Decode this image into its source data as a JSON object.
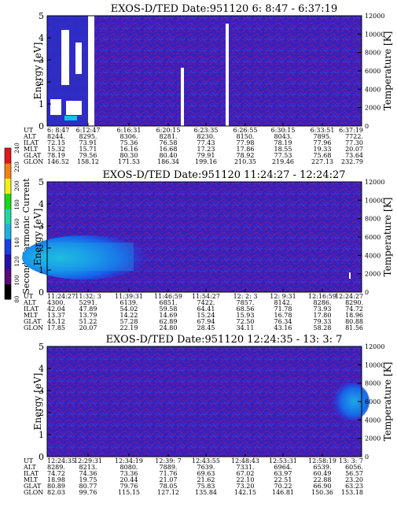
{
  "colorbar": {
    "label": "Second Harmonic Current",
    "ticks": [
      "80",
      "100",
      "120",
      "140",
      "160",
      "180",
      "200",
      "220",
      "240"
    ],
    "colors": [
      "#000000",
      "#5a0a78",
      "#2a10a8",
      "#1840e8",
      "#20b0e0",
      "#20d8a0",
      "#18d818",
      "#f0f018",
      "#f08018",
      "#e01818"
    ]
  },
  "row_labels": [
    "UT",
    "ALT",
    "ILAT",
    "MLT",
    "GLAT",
    "GLON"
  ],
  "panels": [
    {
      "title": "EXOS-D/TED   Date:951120   6: 8:47 - 6:37:19",
      "ylabel": "Energy [eV]",
      "y2label": "Temperature [K]",
      "yticks": [
        "0",
        "1",
        "2",
        "3",
        "4",
        "5"
      ],
      "y2ticks": [
        "0",
        "2000",
        "4000",
        "6000",
        "8000",
        "10000",
        "12000"
      ],
      "columns": [
        [
          "6: 8:47",
          "8244.",
          "72.15",
          "15.32",
          "78.19",
          "146.52"
        ],
        [
          "6:12:47",
          "8295.",
          "73.91",
          "15.71",
          "79.56",
          "158.12"
        ],
        [
          "6:16:31",
          "8306.",
          "75.36",
          "16.16",
          "80.30",
          "171.53"
        ],
        [
          "6:20:15",
          "8281.",
          "76.58",
          "16.68",
          "80.40",
          "186.34"
        ],
        [
          "6:23:35",
          "8230.",
          "77.43",
          "17.23",
          "79.91",
          "199.16"
        ],
        [
          "6:26:55",
          "8150.",
          "77.98",
          "17.86",
          "78.92",
          "210.35"
        ],
        [
          "6:30:15",
          "8043.",
          "78.19",
          "18.55",
          "77.53",
          "219.46"
        ],
        [
          "6:33:51",
          "7895.",
          "77.96",
          "19.33",
          "75.68",
          "227.13"
        ],
        [
          "6:37:19",
          "7722.",
          "77.30",
          "20.07",
          "73.64",
          "232.79"
        ]
      ]
    },
    {
      "title": "EXOS-D/TED   Date:951120   11:24:27 - 12:24:27",
      "ylabel": "Energy [eV]",
      "y2label": "Temperature [K]",
      "yticks": [
        "0",
        "1",
        "2",
        "3",
        "4",
        "5"
      ],
      "y2ticks": [
        "0",
        "2000",
        "4000",
        "6000",
        "8000",
        "10000",
        "12000"
      ],
      "columns": [
        [
          "11:24:27",
          "4300.",
          "42.04",
          "13.37",
          "45.12",
          "17.85"
        ],
        [
          "11:32: 3",
          "5291.",
          "47.89",
          "13.79",
          "51.22",
          "20.07"
        ],
        [
          "11:39:31",
          "6139.",
          "54.02",
          "14.22",
          "57.28",
          "22.19"
        ],
        [
          "11:46:59",
          "6851.",
          "59.58",
          "14.69",
          "62.89",
          "24.80"
        ],
        [
          "11:54:27",
          "7422.",
          "64.41",
          "15.24",
          "67.94",
          "28.45"
        ],
        [
          "12: 2: 3",
          "7857.",
          "68.56",
          "15.93",
          "72.50",
          "34.11"
        ],
        [
          "12: 9:31",
          "8142.",
          "71.78",
          "16.78",
          "76.34",
          "43.16"
        ],
        [
          "12:16:59",
          "8286.",
          "73.93",
          "17.80",
          "79.33",
          "58.28"
        ],
        [
          "12:24:27",
          "8290.",
          "74.72",
          "18.96",
          "80.88",
          "81.56"
        ]
      ]
    },
    {
      "title": "EXOS-D/TED   Date:951120   12:24:35 - 13: 3: 7",
      "ylabel": "Energy [eV]",
      "y2label": "Temperature [K]",
      "yticks": [
        "0",
        "1",
        "2",
        "3",
        "4",
        "5"
      ],
      "y2ticks": [
        "0",
        "2000",
        "4000",
        "6000",
        "8000",
        "10000",
        "12000"
      ],
      "columns": [
        [
          "12:24:35",
          "8289.",
          "74.72",
          "18.98",
          "80.89",
          "82.03"
        ],
        [
          "12:29:31",
          "8213.",
          "74.36",
          "19.75",
          "80.77",
          "99.76"
        ],
        [
          "12:34:19",
          "8080.",
          "73.36",
          "20.44",
          "79.76",
          "115.15"
        ],
        [
          "12:39: 7",
          "7889.",
          "71.76",
          "21.07",
          "78.05",
          "127.12"
        ],
        [
          "12:43:55",
          "7639.",
          "69.63",
          "21.62",
          "75.83",
          "135.84"
        ],
        [
          "12:48:43",
          "7331.",
          "67.02",
          "22.10",
          "73.20",
          "142.15"
        ],
        [
          "12:53:31",
          "6964.",
          "63.97",
          "22.51",
          "70.22",
          "146.81"
        ],
        [
          "12:58:19",
          "6539.",
          "60.49",
          "22.88",
          "66.90",
          "150.36"
        ],
        [
          "13: 3: 7",
          "6056.",
          "56.57",
          "23.20",
          "63.23",
          "153.18"
        ]
      ]
    }
  ],
  "chart_data": [
    {
      "type": "heatmap",
      "title": "EXOS-D/TED   Date:951120   6: 8:47 - 6:37:19",
      "xlabel": "UT",
      "ylabel": "Energy [eV]",
      "y2label": "Temperature [K]",
      "ylim": [
        0,
        5
      ],
      "y2lim": [
        0,
        12000
      ],
      "clim": [
        80,
        240
      ],
      "x": [
        "6: 8:47",
        "6:12:47",
        "6:16:31",
        "6:20:15",
        "6:23:35",
        "6:26:55",
        "6:30:15",
        "6:33:51",
        "6:37:19"
      ],
      "features": [
        {
          "x": [
            "6: 8:47",
            "6:11:10"
          ],
          "energy": [
            0,
            5
          ],
          "level": 115
        },
        {
          "x": [
            "6:11:10",
            "6:12:20"
          ],
          "energy": [
            0,
            5
          ],
          "level": null
        },
        {
          "x": [
            "6:12:20",
            "6:37:19"
          ],
          "energy": [
            0,
            5
          ],
          "level": 100
        }
      ]
    },
    {
      "type": "heatmap",
      "title": "EXOS-D/TED   Date:951120   11:24:27 - 12:24:27",
      "xlabel": "UT",
      "ylabel": "Energy [eV]",
      "y2label": "Temperature [K]",
      "ylim": [
        0,
        5
      ],
      "y2lim": [
        0,
        12000
      ],
      "clim": [
        80,
        240
      ],
      "x": [
        "11:24:27",
        "11:32: 3",
        "11:39:31",
        "11:46:59",
        "11:54:27",
        "12: 2: 3",
        "12: 9:31",
        "12:16:59",
        "12:24:27"
      ],
      "features": [
        {
          "x": [
            "11:24:27",
            "11:40:00"
          ],
          "energy": [
            1.0,
            2.2
          ],
          "level": 155
        },
        {
          "x": [
            "11:40:00",
            "11:48:00"
          ],
          "energy": [
            1.2,
            2.0
          ],
          "level": 140
        },
        {
          "x": [
            "11:24:27",
            "12:24:27"
          ],
          "energy": [
            0,
            5
          ],
          "level": 100
        }
      ]
    },
    {
      "type": "heatmap",
      "title": "EXOS-D/TED   Date:951120   12:24:35 - 13: 3: 7",
      "xlabel": "UT",
      "ylabel": "Energy [eV]",
      "y2label": "Temperature [K]",
      "ylim": [
        0,
        5
      ],
      "y2lim": [
        0,
        12000
      ],
      "clim": [
        80,
        240
      ],
      "x": [
        "12:24:35",
        "12:29:31",
        "12:34:19",
        "12:39: 7",
        "12:43:55",
        "12:48:43",
        "12:53:31",
        "12:58:19",
        "13: 3: 7"
      ],
      "features": [
        {
          "x": [
            "12:58:00",
            "13: 3: 7"
          ],
          "energy": [
            2.8,
            4.2
          ],
          "level": 140
        },
        {
          "x": [
            "12:24:35",
            "13: 3: 7"
          ],
          "energy": [
            0,
            5
          ],
          "level": 100
        }
      ]
    }
  ]
}
